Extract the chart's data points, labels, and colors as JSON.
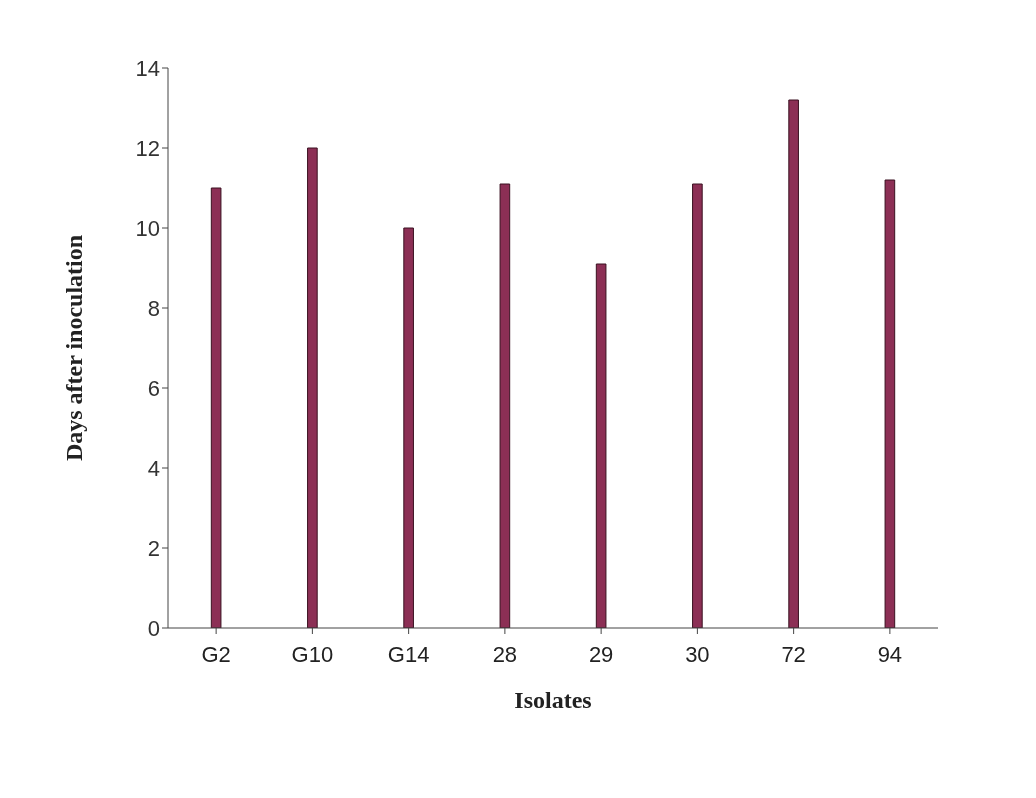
{
  "chart_data": {
    "type": "bar",
    "xlabel": "Isolates",
    "ylabel": "Days after inoculation",
    "categories": [
      "G2",
      "G10",
      "G14",
      "28",
      "29",
      "30",
      "72",
      "94"
    ],
    "values": [
      11,
      12,
      10,
      11.1,
      9.1,
      11.1,
      13.2,
      11.2
    ],
    "color": "#8c2f55",
    "ylim": [
      0,
      14
    ],
    "yticks": [
      0,
      2,
      4,
      6,
      8,
      10,
      12,
      14
    ],
    "grid": false
  }
}
